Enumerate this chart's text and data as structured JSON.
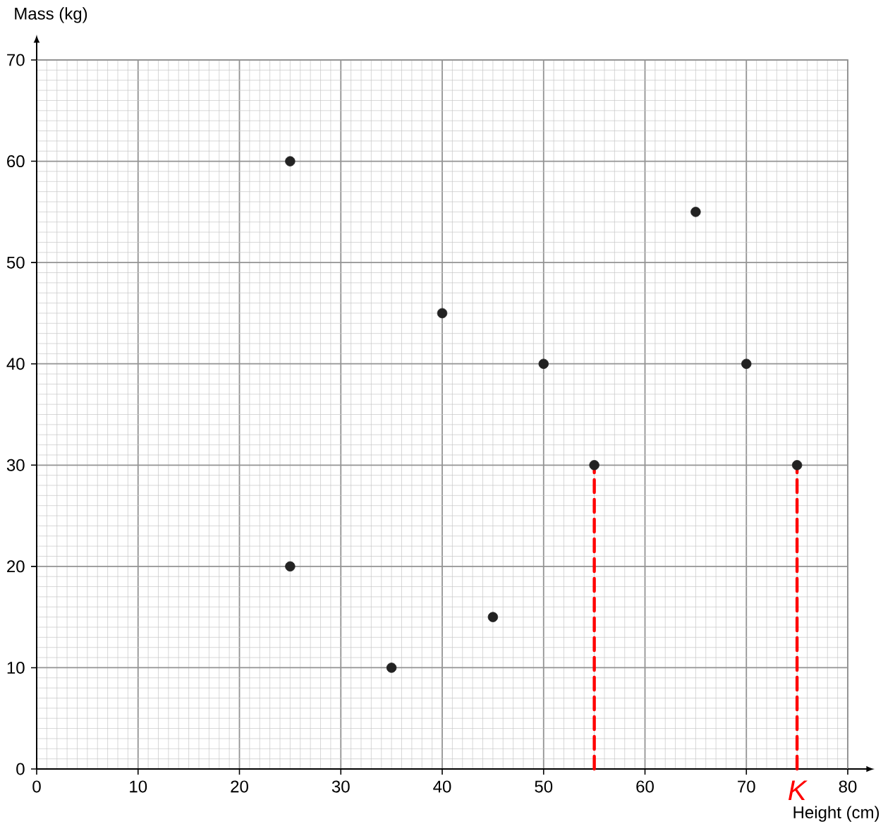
{
  "chart_data": {
    "type": "scatter",
    "xlabel": "Height (cm)",
    "ylabel": "Mass (kg)",
    "xlim": [
      0,
      80
    ],
    "ylim": [
      0,
      70
    ],
    "xticks": [
      0,
      10,
      20,
      30,
      40,
      50,
      60,
      70,
      80
    ],
    "yticks": [
      0,
      10,
      20,
      30,
      40,
      50,
      60,
      70
    ],
    "grid": true,
    "marker": "circle",
    "series": [
      {
        "color": "#222222",
        "x": [
          25,
          40,
          50,
          65,
          70,
          55,
          75,
          25,
          45,
          35
        ],
        "values": [
          60,
          45,
          40,
          55,
          40,
          30,
          30,
          20,
          15,
          10
        ]
      },
      {
        "type": "line",
        "color": "#ff0000",
        "line_style": "dashed",
        "marker": "none",
        "x": [
          55,
          55
        ],
        "values": [
          0,
          30
        ]
      },
      {
        "type": "line",
        "color": "#ff0000",
        "line_style": "dashed",
        "marker": "none",
        "x": [
          75,
          75
        ],
        "values": [
          0,
          30
        ]
      }
    ],
    "annotations": [
      {
        "text": "K",
        "x": 75,
        "y": 0
      }
    ]
  }
}
